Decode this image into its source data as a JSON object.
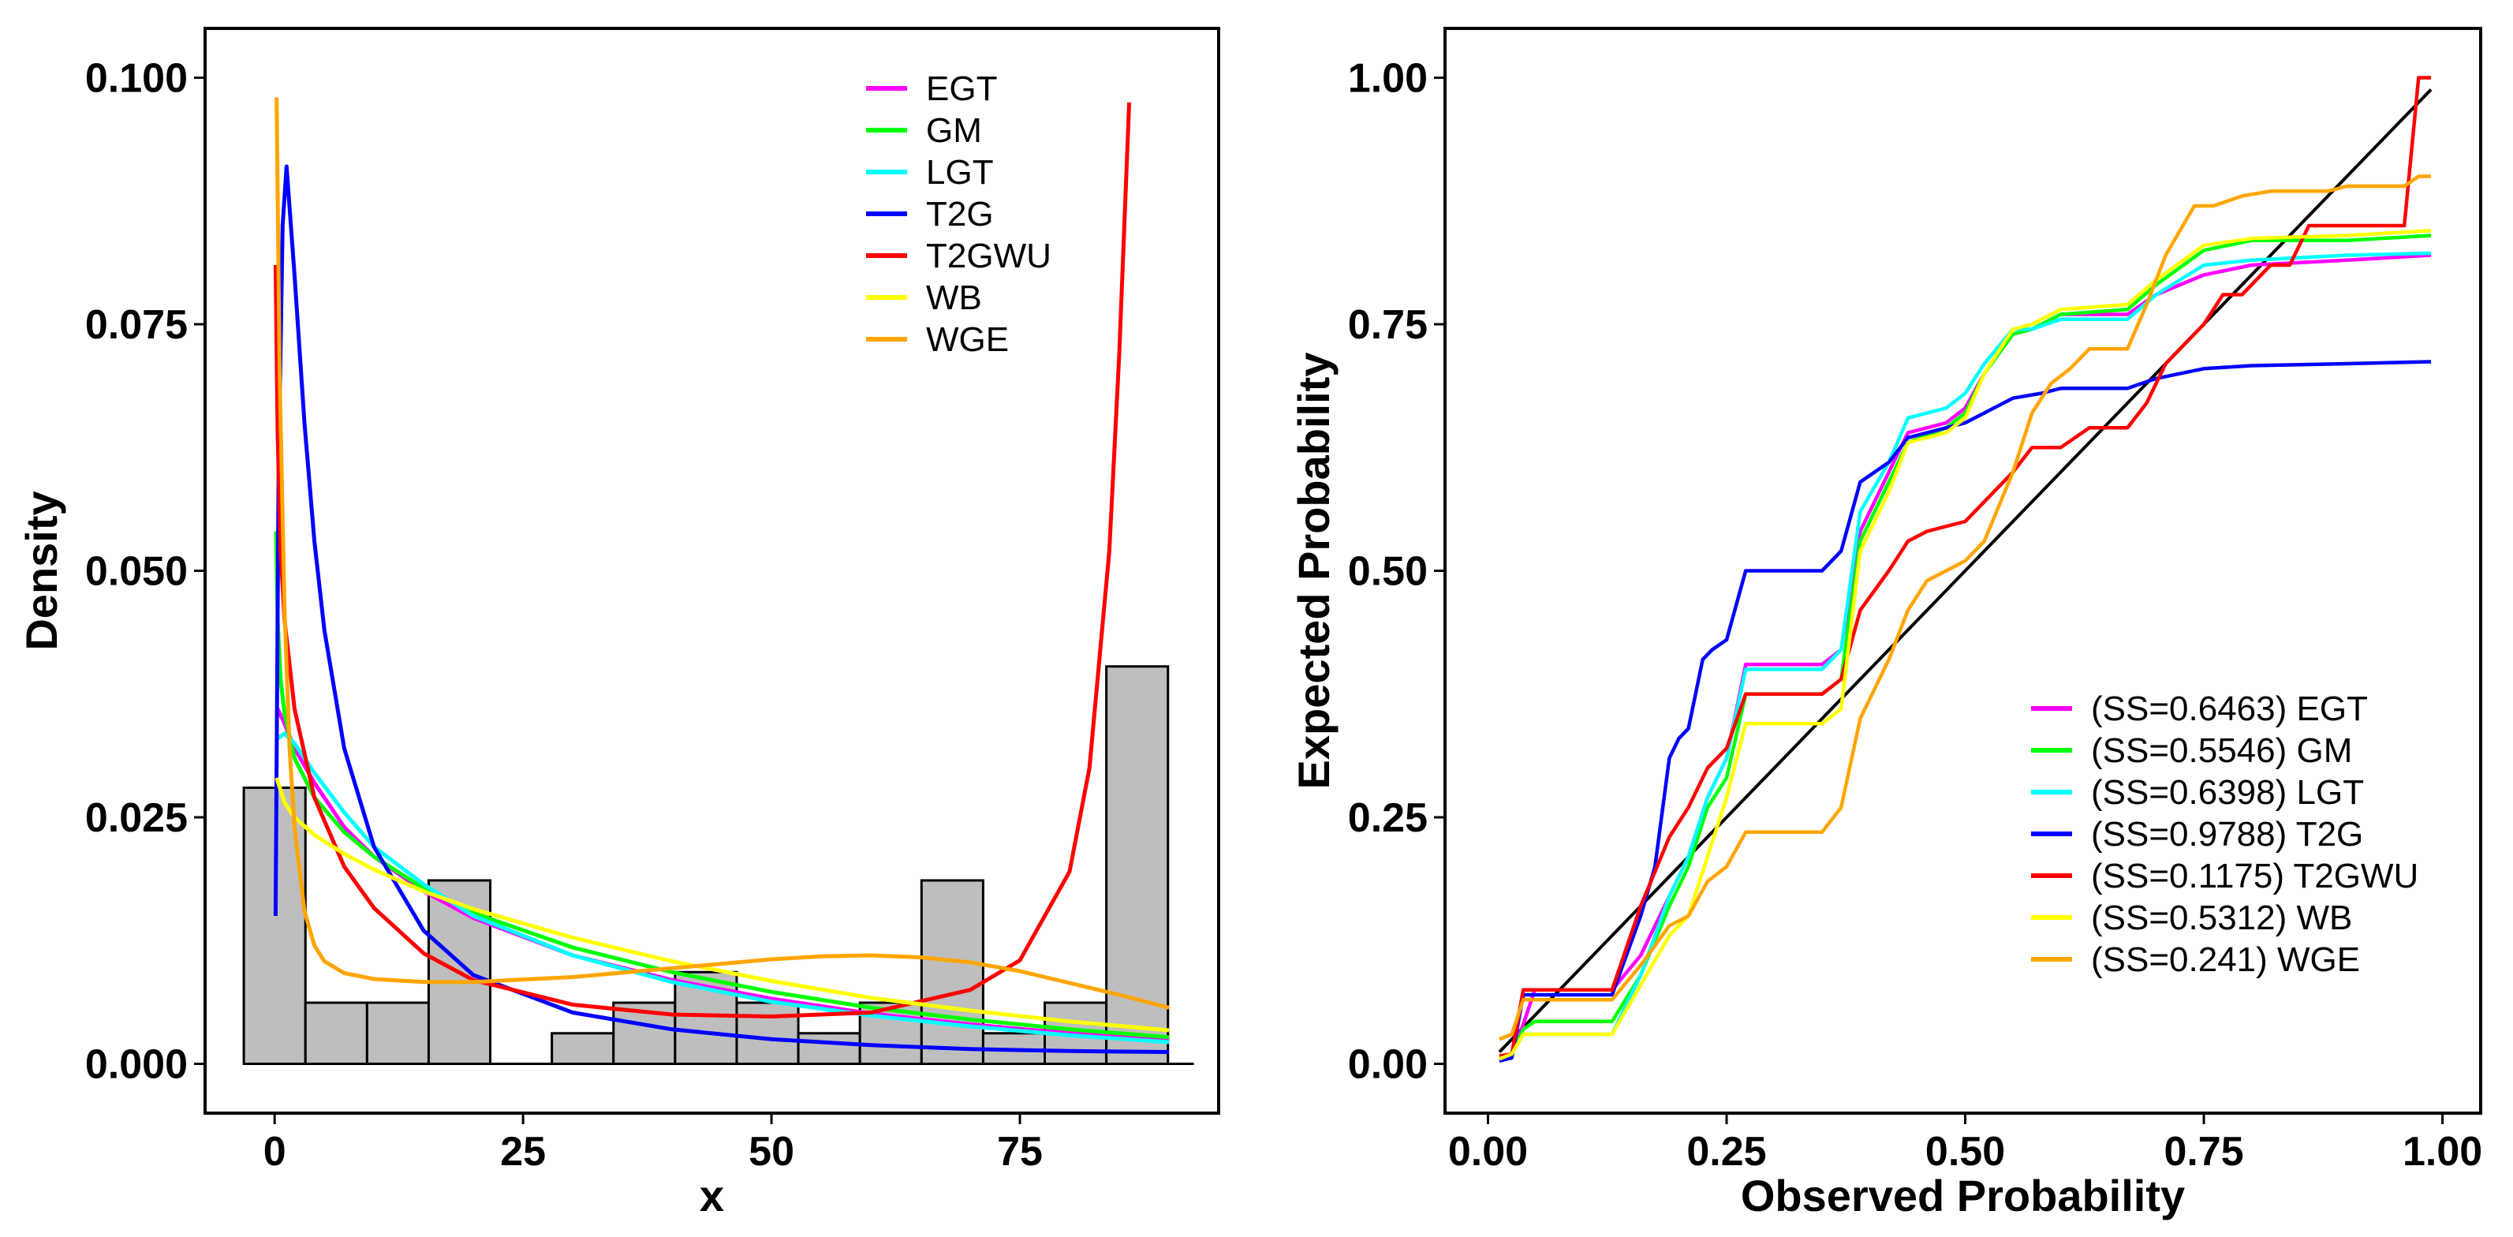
{
  "chart_data": [
    {
      "type": "histogram+density",
      "xlabel": "x",
      "ylabel": "Density",
      "xlim": [
        -7,
        95
      ],
      "ylim": [
        -0.005,
        0.105
      ],
      "x_ticks": [
        0,
        25,
        50,
        75
      ],
      "x_tick_labels": [
        "0",
        "25",
        "50",
        "75"
      ],
      "y_ticks": [
        0,
        0.025,
        0.05,
        0.075,
        0.1
      ],
      "y_tick_labels": [
        "0.000",
        "0.025",
        "0.050",
        "0.075",
        "0.100"
      ],
      "legend_position": "top-right",
      "histogram": {
        "fill": "#bebebe",
        "bins": [
          {
            "x0": -3.1,
            "x1": 3.1,
            "value": 0.028
          },
          {
            "x0": 3.1,
            "x1": 9.3,
            "value": 0.0062
          },
          {
            "x0": 9.3,
            "x1": 15.5,
            "value": 0.0062
          },
          {
            "x0": 15.5,
            "x1": 21.7,
            "value": 0.0186
          },
          {
            "x0": 21.7,
            "x1": 27.9,
            "value": 0
          },
          {
            "x0": 27.9,
            "x1": 34.1,
            "value": 0.0031
          },
          {
            "x0": 34.1,
            "x1": 40.3,
            "value": 0.0062
          },
          {
            "x0": 40.3,
            "x1": 46.5,
            "value": 0.0093
          },
          {
            "x0": 46.5,
            "x1": 52.7,
            "value": 0.0062
          },
          {
            "x0": 52.7,
            "x1": 58.9,
            "value": 0.0031
          },
          {
            "x0": 58.9,
            "x1": 65.1,
            "value": 0.0062
          },
          {
            "x0": 65.1,
            "x1": 71.3,
            "value": 0.0186
          },
          {
            "x0": 71.3,
            "x1": 77.5,
            "value": 0.0031
          },
          {
            "x0": 77.5,
            "x1": 83.7,
            "value": 0.0062
          },
          {
            "x0": 83.7,
            "x1": 89.9,
            "value": 0.0403
          },
          {
            "x0": 89.9,
            "x1": 92.5,
            "value": 0
          }
        ]
      },
      "series": [
        {
          "name": "EGT",
          "color": "#ff00ff",
          "x": [
            0.3,
            1,
            2,
            4,
            7,
            10,
            15,
            20,
            30,
            40,
            50,
            60,
            70,
            80,
            90
          ],
          "y": [
            0.036,
            0.0345,
            0.032,
            0.0285,
            0.024,
            0.021,
            0.0175,
            0.0148,
            0.011,
            0.0085,
            0.0066,
            0.0051,
            0.004,
            0.0031,
            0.0024
          ]
        },
        {
          "name": "GM",
          "color": "#00ff00",
          "x": [
            0.15,
            0.3,
            0.6,
            1,
            2,
            4,
            7,
            10,
            15,
            20,
            30,
            40,
            50,
            60,
            70,
            80,
            90
          ],
          "y": [
            0.054,
            0.045,
            0.039,
            0.0355,
            0.031,
            0.027,
            0.0235,
            0.021,
            0.0178,
            0.0153,
            0.0118,
            0.0093,
            0.0073,
            0.0057,
            0.0045,
            0.0035,
            0.0027
          ]
        },
        {
          "name": "LGT",
          "color": "#00ffff",
          "x": [
            0.3,
            1,
            2,
            4,
            7,
            10,
            15,
            20,
            30,
            40,
            50,
            60,
            70,
            80,
            90
          ],
          "y": [
            0.033,
            0.0335,
            0.0325,
            0.0295,
            0.0255,
            0.022,
            0.0182,
            0.015,
            0.011,
            0.0083,
            0.0063,
            0.0049,
            0.0038,
            0.0029,
            0.0022
          ]
        },
        {
          "name": "T2G",
          "color": "#0000ff",
          "x": [
            0.1,
            0.4,
            0.8,
            1.2,
            2,
            3,
            4,
            5,
            7,
            10,
            15,
            20,
            30,
            40,
            50,
            60,
            70,
            80,
            90
          ],
          "y": [
            0.015,
            0.06,
            0.085,
            0.091,
            0.08,
            0.065,
            0.053,
            0.044,
            0.032,
            0.022,
            0.0135,
            0.009,
            0.0052,
            0.0035,
            0.0025,
            0.0019,
            0.0015,
            0.0013,
            0.0012
          ]
        },
        {
          "name": "T2GWU",
          "color": "#ff0000",
          "x": [
            0.1,
            0.3,
            0.6,
            1,
            2,
            4,
            7,
            10,
            15,
            20,
            30,
            40,
            50,
            60,
            70,
            75,
            80,
            82,
            84,
            85,
            86
          ],
          "y": [
            0.081,
            0.064,
            0.052,
            0.045,
            0.036,
            0.027,
            0.02,
            0.0158,
            0.0112,
            0.0085,
            0.006,
            0.005,
            0.0048,
            0.0052,
            0.0075,
            0.0105,
            0.0195,
            0.03,
            0.052,
            0.072,
            0.0975
          ]
        },
        {
          "name": "WB",
          "color": "#ffff00",
          "x": [
            0.2,
            1,
            2,
            4,
            7,
            10,
            15,
            20,
            30,
            40,
            50,
            60,
            70,
            80,
            90
          ],
          "y": [
            0.029,
            0.0265,
            0.025,
            0.0232,
            0.0213,
            0.0197,
            0.0175,
            0.0157,
            0.0128,
            0.0104,
            0.0084,
            0.0067,
            0.0054,
            0.0043,
            0.0034
          ]
        },
        {
          "name": "WGE",
          "color": "#ffa500",
          "x": [
            0.2,
            0.5,
            1,
            1.5,
            2,
            3,
            4,
            5,
            7,
            10,
            15,
            20,
            30,
            40,
            50,
            55,
            60,
            65,
            70,
            75,
            80,
            85,
            90
          ],
          "y": [
            0.098,
            0.07,
            0.046,
            0.032,
            0.024,
            0.0155,
            0.012,
            0.0104,
            0.0092,
            0.0086,
            0.0083,
            0.0083,
            0.0088,
            0.0097,
            0.0106,
            0.0109,
            0.011,
            0.0108,
            0.0103,
            0.0094,
            0.0082,
            0.007,
            0.0057
          ]
        }
      ]
    },
    {
      "type": "line",
      "xlabel": "Observed Probability",
      "ylabel": "Expected Probability",
      "xlim": [
        -0.045,
        1.04
      ],
      "ylim": [
        -0.05,
        1.05
      ],
      "x_ticks": [
        0,
        0.25,
        0.5,
        0.75,
        1
      ],
      "x_tick_labels": [
        "0.00",
        "0.25",
        "0.50",
        "0.75",
        "1.00"
      ],
      "y_ticks": [
        0,
        0.25,
        0.5,
        0.75,
        1
      ],
      "y_tick_labels": [
        "0.00",
        "0.25",
        "0.50",
        "0.75",
        "1.00"
      ],
      "legend_position": "bottom-right",
      "reference_line": {
        "color": "#000000",
        "x": [
          0.012,
          0.988
        ],
        "y": [
          0.012,
          0.988
        ]
      },
      "series": [
        {
          "name": "EGT",
          "legend": "(SS=0.6463) EGT",
          "color": "#ff00ff",
          "x": [
            0.012,
            0.025,
            0.037,
            0.049,
            0.13,
            0.16,
            0.19,
            0.21,
            0.23,
            0.25,
            0.27,
            0.35,
            0.37,
            0.39,
            0.42,
            0.44,
            0.48,
            0.5,
            0.52,
            0.55,
            0.57,
            0.6,
            0.67,
            0.7,
            0.75,
            0.8,
            0.9,
            0.988
          ],
          "y": [
            0.005,
            0.01,
            0.04,
            0.075,
            0.075,
            0.11,
            0.17,
            0.21,
            0.27,
            0.31,
            0.405,
            0.405,
            0.42,
            0.54,
            0.6,
            0.64,
            0.65,
            0.665,
            0.7,
            0.74,
            0.745,
            0.76,
            0.76,
            0.78,
            0.8,
            0.81,
            0.815,
            0.82
          ]
        },
        {
          "name": "GM",
          "legend": "(SS=0.5546) GM",
          "color": "#00ff00",
          "x": [
            0.012,
            0.025,
            0.037,
            0.049,
            0.13,
            0.16,
            0.19,
            0.21,
            0.23,
            0.25,
            0.27,
            0.35,
            0.37,
            0.39,
            0.42,
            0.44,
            0.48,
            0.5,
            0.52,
            0.55,
            0.57,
            0.6,
            0.67,
            0.7,
            0.75,
            0.8,
            0.9,
            0.988
          ],
          "y": [
            0.005,
            0.01,
            0.035,
            0.043,
            0.043,
            0.09,
            0.16,
            0.2,
            0.26,
            0.29,
            0.375,
            0.375,
            0.39,
            0.53,
            0.59,
            0.63,
            0.645,
            0.66,
            0.7,
            0.74,
            0.745,
            0.76,
            0.765,
            0.79,
            0.825,
            0.835,
            0.835,
            0.84
          ]
        },
        {
          "name": "LGT",
          "legend": "(SS=0.6398) LGT",
          "color": "#00ffff",
          "x": [
            0.012,
            0.025,
            0.037,
            0.049,
            0.13,
            0.16,
            0.19,
            0.21,
            0.23,
            0.25,
            0.27,
            0.35,
            0.37,
            0.39,
            0.42,
            0.44,
            0.48,
            0.5,
            0.52,
            0.55,
            0.57,
            0.6,
            0.67,
            0.7,
            0.75,
            0.8,
            0.9,
            0.988
          ],
          "y": [
            0.005,
            0.01,
            0.03,
            0.03,
            0.03,
            0.09,
            0.17,
            0.21,
            0.27,
            0.31,
            0.4,
            0.4,
            0.42,
            0.56,
            0.61,
            0.655,
            0.665,
            0.68,
            0.71,
            0.745,
            0.745,
            0.755,
            0.755,
            0.78,
            0.81,
            0.815,
            0.82,
            0.822
          ]
        },
        {
          "name": "T2G",
          "legend": "(SS=0.9788) T2G",
          "color": "#0000ff",
          "x": [
            0.012,
            0.025,
            0.037,
            0.049,
            0.13,
            0.16,
            0.175,
            0.19,
            0.2,
            0.21,
            0.225,
            0.235,
            0.25,
            0.27,
            0.35,
            0.37,
            0.39,
            0.42,
            0.44,
            0.46,
            0.48,
            0.5,
            0.52,
            0.55,
            0.58,
            0.6,
            0.67,
            0.7,
            0.75,
            0.8,
            0.9,
            0.988
          ],
          "y": [
            0.003,
            0.006,
            0.07,
            0.07,
            0.07,
            0.15,
            0.2,
            0.31,
            0.33,
            0.34,
            0.41,
            0.42,
            0.43,
            0.5,
            0.5,
            0.52,
            0.59,
            0.61,
            0.635,
            0.64,
            0.645,
            0.65,
            0.66,
            0.675,
            0.68,
            0.685,
            0.685,
            0.695,
            0.705,
            0.708,
            0.71,
            0.712
          ]
        },
        {
          "name": "T2GWU",
          "legend": "(SS=0.1175) T2GWU",
          "color": "#ff0000",
          "x": [
            0.012,
            0.025,
            0.037,
            0.049,
            0.13,
            0.16,
            0.19,
            0.21,
            0.23,
            0.25,
            0.27,
            0.35,
            0.37,
            0.39,
            0.42,
            0.44,
            0.46,
            0.5,
            0.52,
            0.55,
            0.57,
            0.6,
            0.63,
            0.67,
            0.69,
            0.71,
            0.75,
            0.77,
            0.79,
            0.82,
            0.84,
            0.86,
            0.96,
            0.975,
            0.988
          ],
          "y": [
            0.008,
            0.01,
            0.075,
            0.075,
            0.075,
            0.16,
            0.23,
            0.26,
            0.3,
            0.32,
            0.375,
            0.375,
            0.39,
            0.46,
            0.5,
            0.53,
            0.54,
            0.55,
            0.57,
            0.6,
            0.625,
            0.625,
            0.645,
            0.645,
            0.67,
            0.71,
            0.75,
            0.78,
            0.78,
            0.81,
            0.81,
            0.85,
            0.85,
            1.0,
            1.0
          ]
        },
        {
          "name": "WB",
          "legend": "(SS=0.5312) WB",
          "color": "#ffff00",
          "x": [
            0.012,
            0.025,
            0.037,
            0.049,
            0.13,
            0.16,
            0.19,
            0.21,
            0.23,
            0.25,
            0.27,
            0.35,
            0.37,
            0.39,
            0.42,
            0.44,
            0.48,
            0.5,
            0.52,
            0.55,
            0.57,
            0.6,
            0.67,
            0.7,
            0.75,
            0.8,
            0.9,
            0.988
          ],
          "y": [
            0.005,
            0.01,
            0.03,
            0.03,
            0.03,
            0.08,
            0.13,
            0.15,
            0.21,
            0.27,
            0.345,
            0.345,
            0.36,
            0.52,
            0.58,
            0.63,
            0.64,
            0.655,
            0.7,
            0.745,
            0.75,
            0.765,
            0.77,
            0.795,
            0.83,
            0.837,
            0.84,
            0.845
          ]
        },
        {
          "name": "WGE",
          "legend": "(SS=0.241) WGE",
          "color": "#ffa500",
          "x": [
            0.012,
            0.025,
            0.037,
            0.049,
            0.13,
            0.16,
            0.19,
            0.21,
            0.23,
            0.25,
            0.27,
            0.35,
            0.37,
            0.39,
            0.42,
            0.44,
            0.46,
            0.5,
            0.52,
            0.55,
            0.57,
            0.59,
            0.61,
            0.63,
            0.67,
            0.69,
            0.71,
            0.74,
            0.76,
            0.79,
            0.82,
            0.85,
            0.88,
            0.9,
            0.96,
            0.975,
            0.988
          ],
          "y": [
            0.025,
            0.03,
            0.065,
            0.065,
            0.065,
            0.1,
            0.14,
            0.15,
            0.185,
            0.2,
            0.235,
            0.235,
            0.26,
            0.35,
            0.41,
            0.46,
            0.49,
            0.51,
            0.53,
            0.6,
            0.66,
            0.69,
            0.705,
            0.725,
            0.725,
            0.77,
            0.82,
            0.87,
            0.87,
            0.88,
            0.885,
            0.885,
            0.885,
            0.89,
            0.89,
            0.9,
            0.9
          ]
        }
      ]
    }
  ]
}
